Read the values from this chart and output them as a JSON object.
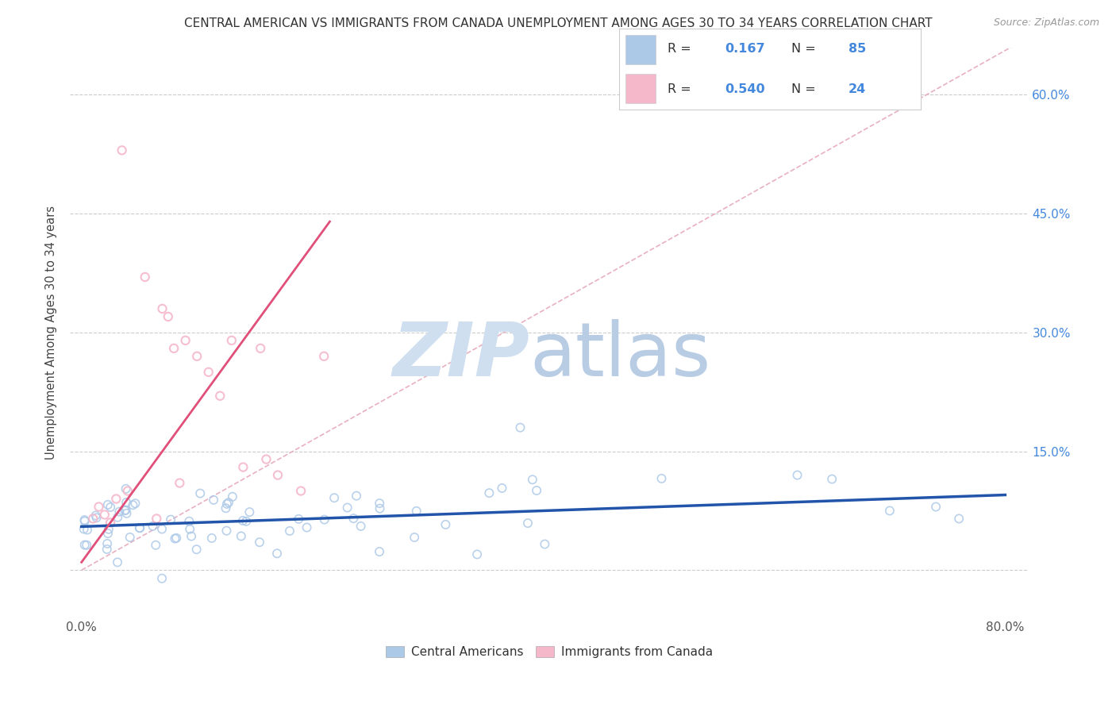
{
  "title": "CENTRAL AMERICAN VS IMMIGRANTS FROM CANADA UNEMPLOYMENT AMONG AGES 30 TO 34 YEARS CORRELATION CHART",
  "source": "Source: ZipAtlas.com",
  "ylabel": "Unemployment Among Ages 30 to 34 years",
  "xlim": [
    -0.01,
    0.82
  ],
  "ylim": [
    -0.06,
    0.66
  ],
  "x_ticks": [
    0.0,
    0.2,
    0.4,
    0.6,
    0.8
  ],
  "x_tick_labels": [
    "0.0%",
    "",
    "",
    "",
    "80.0%"
  ],
  "y_ticks_right": [
    0.0,
    0.15,
    0.3,
    0.45,
    0.6
  ],
  "y_tick_labels_right": [
    "",
    "15.0%",
    "30.0%",
    "45.0%",
    "60.0%"
  ],
  "blue_R": "0.167",
  "blue_N": "85",
  "pink_R": "0.540",
  "pink_N": "24",
  "blue_color": "#adc9e8",
  "pink_color": "#f5b8cb",
  "blue_line_color": "#2255aa",
  "pink_line_color": "#e0507a",
  "diag_color": "#e8b0c0",
  "grid_color": "#cccccc",
  "legend_R_N_color": "#333333",
  "legend_val_color": "#4488dd",
  "watermark_zip_color": "#d0dff0",
  "watermark_atlas_color": "#b8cce4",
  "blue_trend_x0": 0.0,
  "blue_trend_y0": 0.055,
  "blue_trend_x1": 0.8,
  "blue_trend_y1": 0.095,
  "pink_trend_x0": 0.0,
  "pink_trend_y0": 0.01,
  "pink_trend_x1": 0.215,
  "pink_trend_y1": 0.44
}
